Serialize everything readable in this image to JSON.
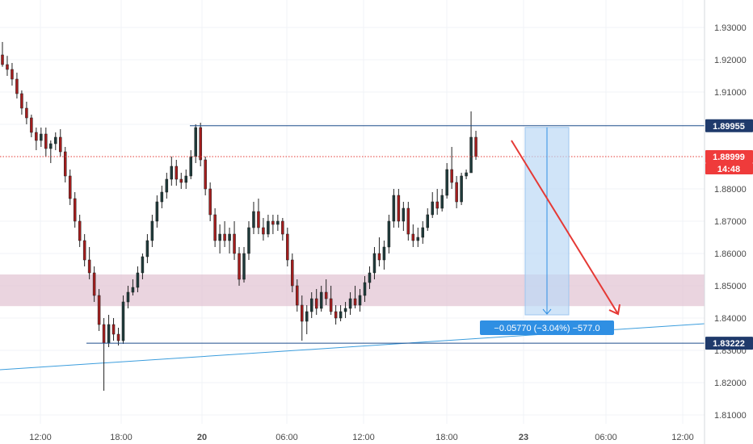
{
  "chart_data": {
    "type": "candlestick",
    "y_axis": {
      "range": [
        1.805,
        1.935
      ],
      "ticks": [
        "1.93000",
        "1.92000",
        "1.91000",
        "1.90000",
        "1.88000",
        "1.87000",
        "1.86000",
        "1.85000",
        "1.84000",
        "1.83000",
        "1.82000",
        "1.81000"
      ],
      "tick_values": [
        1.93,
        1.92,
        1.91,
        1.9,
        1.88,
        1.87,
        1.86,
        1.85,
        1.84,
        1.83,
        1.82,
        1.81
      ]
    },
    "x_axis": {
      "ticks": [
        "12:00",
        "18:00",
        "20",
        "06:00",
        "12:00",
        "18:00",
        "23",
        "06:00",
        "12:00"
      ]
    },
    "price_labels": {
      "resistance": "1.89955",
      "current": "1.88999",
      "countdown": "14:48",
      "support": "1.83222"
    },
    "levels": {
      "resistance": 1.89955,
      "current": 1.88999,
      "support": 1.83222
    },
    "zone": {
      "low": 1.8437,
      "high": 1.8535
    },
    "measure_label": "−0.05770 (−3.04%) −577.0",
    "colors": {
      "up": "#26a69a",
      "down": "#ef5350",
      "candle_up_body": "#1e3a3a",
      "candle_down_body": "#a31d1d",
      "level_line": "#1f4e8c",
      "current_line": "#e53935",
      "zone": "#e3c6d4",
      "measure_fill": "#bcd8f5",
      "measure_label_bg": "#2f8fe3",
      "trendline": "#3b9ddd",
      "arrow": "#e53935"
    },
    "candles": [
      [
        1.9215,
        1.9255,
        1.9178,
        1.9185
      ],
      [
        1.9185,
        1.9212,
        1.915,
        1.917
      ],
      [
        1.917,
        1.919,
        1.912,
        1.914
      ],
      [
        1.914,
        1.916,
        1.908,
        1.9095
      ],
      [
        1.9095,
        1.9105,
        1.903,
        1.905
      ],
      [
        1.905,
        1.907,
        1.9,
        1.902
      ],
      [
        1.902,
        1.903,
        1.896,
        1.8975
      ],
      [
        1.8975,
        1.899,
        1.892,
        1.895
      ],
      [
        1.895,
        1.899,
        1.893,
        1.897
      ],
      [
        1.897,
        1.899,
        1.89,
        1.8925
      ],
      [
        1.8925,
        1.895,
        1.888,
        1.894
      ],
      [
        1.894,
        1.8975,
        1.892,
        1.896
      ],
      [
        1.896,
        1.8985,
        1.89,
        1.8915
      ],
      [
        1.8915,
        1.893,
        1.882,
        1.884
      ],
      [
        1.884,
        1.886,
        1.875,
        1.877
      ],
      [
        1.877,
        1.879,
        1.868,
        1.87
      ],
      [
        1.87,
        1.872,
        1.862,
        1.864
      ],
      [
        1.864,
        1.866,
        1.856,
        1.858
      ],
      [
        1.858,
        1.862,
        1.852,
        1.854
      ],
      [
        1.854,
        1.856,
        1.845,
        1.847
      ],
      [
        1.847,
        1.849,
        1.836,
        1.838
      ],
      [
        1.838,
        1.84,
        1.8175,
        1.8322
      ],
      [
        1.8322,
        1.841,
        1.831,
        1.838
      ],
      [
        1.838,
        1.84,
        1.833,
        1.835
      ],
      [
        1.835,
        1.837,
        1.8315,
        1.833
      ],
      [
        1.833,
        1.847,
        1.832,
        1.845
      ],
      [
        1.845,
        1.85,
        1.843,
        1.848
      ],
      [
        1.848,
        1.852,
        1.847,
        1.8495
      ],
      [
        1.8495,
        1.856,
        1.848,
        1.854
      ],
      [
        1.854,
        1.86,
        1.852,
        1.859
      ],
      [
        1.859,
        1.866,
        1.857,
        1.864
      ],
      [
        1.864,
        1.872,
        1.862,
        1.87
      ],
      [
        1.87,
        1.878,
        1.868,
        1.876
      ],
      [
        1.876,
        1.881,
        1.874,
        1.879
      ],
      [
        1.879,
        1.885,
        1.877,
        1.883
      ],
      [
        1.883,
        1.89,
        1.881,
        1.887
      ],
      [
        1.887,
        1.889,
        1.881,
        1.883
      ],
      [
        1.883,
        1.885,
        1.88,
        1.882
      ],
      [
        1.882,
        1.886,
        1.88,
        1.884
      ],
      [
        1.884,
        1.892,
        1.883,
        1.89
      ],
      [
        1.89,
        1.9,
        1.888,
        1.899
      ],
      [
        1.899,
        1.9005,
        1.887,
        1.889
      ],
      [
        1.889,
        1.89,
        1.878,
        1.88
      ],
      [
        1.88,
        1.882,
        1.87,
        1.872
      ],
      [
        1.872,
        1.874,
        1.862,
        1.864
      ],
      [
        1.864,
        1.869,
        1.86,
        1.866
      ],
      [
        1.866,
        1.87,
        1.862,
        1.864
      ],
      [
        1.864,
        1.868,
        1.86,
        1.866
      ],
      [
        1.866,
        1.87,
        1.858,
        1.86
      ],
      [
        1.86,
        1.862,
        1.85,
        1.852
      ],
      [
        1.852,
        1.862,
        1.851,
        1.86
      ],
      [
        1.86,
        1.87,
        1.858,
        1.868
      ],
      [
        1.868,
        1.876,
        1.866,
        1.873
      ],
      [
        1.873,
        1.877,
        1.866,
        1.868
      ],
      [
        1.868,
        1.871,
        1.864,
        1.866
      ],
      [
        1.866,
        1.872,
        1.865,
        1.87
      ],
      [
        1.87,
        1.872,
        1.866,
        1.869
      ],
      [
        1.869,
        1.872,
        1.867,
        1.87
      ],
      [
        1.87,
        1.871,
        1.864,
        1.866
      ],
      [
        1.866,
        1.868,
        1.856,
        1.858
      ],
      [
        1.858,
        1.86,
        1.848,
        1.85
      ],
      [
        1.85,
        1.852,
        1.842,
        1.844
      ],
      [
        1.844,
        1.847,
        1.833,
        1.839
      ],
      [
        1.839,
        1.844,
        1.835,
        1.842
      ],
      [
        1.842,
        1.848,
        1.84,
        1.846
      ],
      [
        1.846,
        1.849,
        1.841,
        1.843
      ],
      [
        1.843,
        1.85,
        1.842,
        1.848
      ],
      [
        1.848,
        1.852,
        1.844,
        1.846
      ],
      [
        1.846,
        1.85,
        1.841,
        1.842
      ],
      [
        1.842,
        1.844,
        1.838,
        1.84
      ],
      [
        1.84,
        1.844,
        1.839,
        1.842
      ],
      [
        1.842,
        1.845,
        1.84,
        1.843
      ],
      [
        1.843,
        1.848,
        1.841,
        1.846
      ],
      [
        1.846,
        1.85,
        1.843,
        1.844
      ],
      [
        1.844,
        1.849,
        1.842,
        1.847
      ],
      [
        1.847,
        1.853,
        1.845,
        1.851
      ],
      [
        1.851,
        1.856,
        1.849,
        1.854
      ],
      [
        1.854,
        1.862,
        1.852,
        1.86
      ],
      [
        1.86,
        1.865,
        1.856,
        1.858
      ],
      [
        1.858,
        1.864,
        1.855,
        1.862
      ],
      [
        1.862,
        1.872,
        1.86,
        1.87
      ],
      [
        1.87,
        1.88,
        1.868,
        1.878
      ],
      [
        1.878,
        1.88,
        1.868,
        1.87
      ],
      [
        1.87,
        1.876,
        1.867,
        1.874
      ],
      [
        1.874,
        1.876,
        1.864,
        1.866
      ],
      [
        1.866,
        1.869,
        1.862,
        1.864
      ],
      [
        1.864,
        1.868,
        1.862,
        1.865
      ],
      [
        1.865,
        1.87,
        1.863,
        1.868
      ],
      [
        1.868,
        1.874,
        1.867,
        1.872
      ],
      [
        1.872,
        1.879,
        1.871,
        1.876
      ],
      [
        1.876,
        1.88,
        1.872,
        1.874
      ],
      [
        1.874,
        1.88,
        1.873,
        1.878
      ],
      [
        1.878,
        1.888,
        1.877,
        1.886
      ],
      [
        1.886,
        1.893,
        1.88,
        1.882
      ],
      [
        1.882,
        1.884,
        1.874,
        1.876
      ],
      [
        1.876,
        1.885,
        1.875,
        1.884
      ],
      [
        1.884,
        1.886,
        1.883,
        1.885
      ],
      [
        1.885,
        1.904,
        1.885,
        1.896
      ],
      [
        1.896,
        1.898,
        1.889,
        1.89
      ]
    ]
  }
}
